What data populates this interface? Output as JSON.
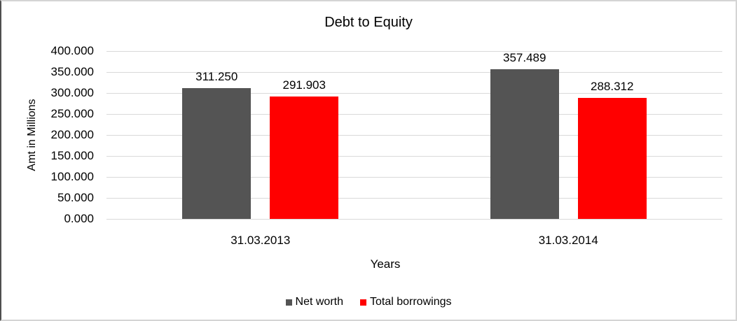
{
  "chart_data": {
    "type": "bar",
    "title": "Debt to Equity",
    "xlabel": "Years",
    "ylabel": "Amt in Millions",
    "categories": [
      "31.03.2013",
      "31.03.2014"
    ],
    "series": [
      {
        "name": "Net worth",
        "color": "#545454",
        "values": [
          311.25,
          357.489
        ],
        "value_labels": [
          "311.250",
          "357.489"
        ]
      },
      {
        "name": "Total borrowings",
        "color": "#ff0000",
        "values": [
          291.903,
          288.312
        ],
        "value_labels": [
          "291.903",
          "288.312"
        ]
      }
    ],
    "ylim": [
      0,
      400
    ],
    "y_tick_step": 50,
    "y_tick_labels": [
      "0.000",
      "50.000",
      "100.000",
      "150.000",
      "200.000",
      "250.000",
      "300.000",
      "350.000",
      "400.000"
    ],
    "grid": true,
    "gridline_color": "#d9d9d9",
    "legend_position": "bottom",
    "data_labels_shown": true
  }
}
